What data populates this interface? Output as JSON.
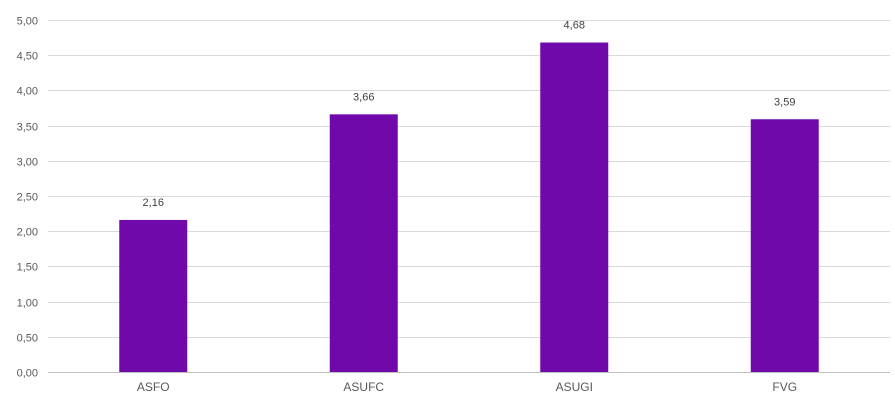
{
  "chart_data": {
    "type": "bar",
    "title": "",
    "xlabel": "",
    "ylabel": "",
    "categories": [
      "ASFO",
      "ASUFC",
      "ASUGI",
      "FVG"
    ],
    "values": [
      2.16,
      3.66,
      4.68,
      3.59
    ],
    "value_labels": [
      "2,16",
      "3,66",
      "4,68",
      "3,59"
    ],
    "ylim": [
      0,
      5
    ],
    "yticks": [
      0,
      0.5,
      1,
      1.5,
      2,
      2.5,
      3,
      3.5,
      4,
      4.5,
      5
    ],
    "ytick_labels": [
      "0,00",
      "0,50",
      "1,00",
      "1,50",
      "2,00",
      "2,50",
      "3,00",
      "3,50",
      "4,00",
      "4,50",
      "5,00"
    ],
    "grid": true,
    "legend": "none",
    "bar_color": "#7009aa",
    "grid_color": "#d9d9d9",
    "label_color": "#595959"
  }
}
